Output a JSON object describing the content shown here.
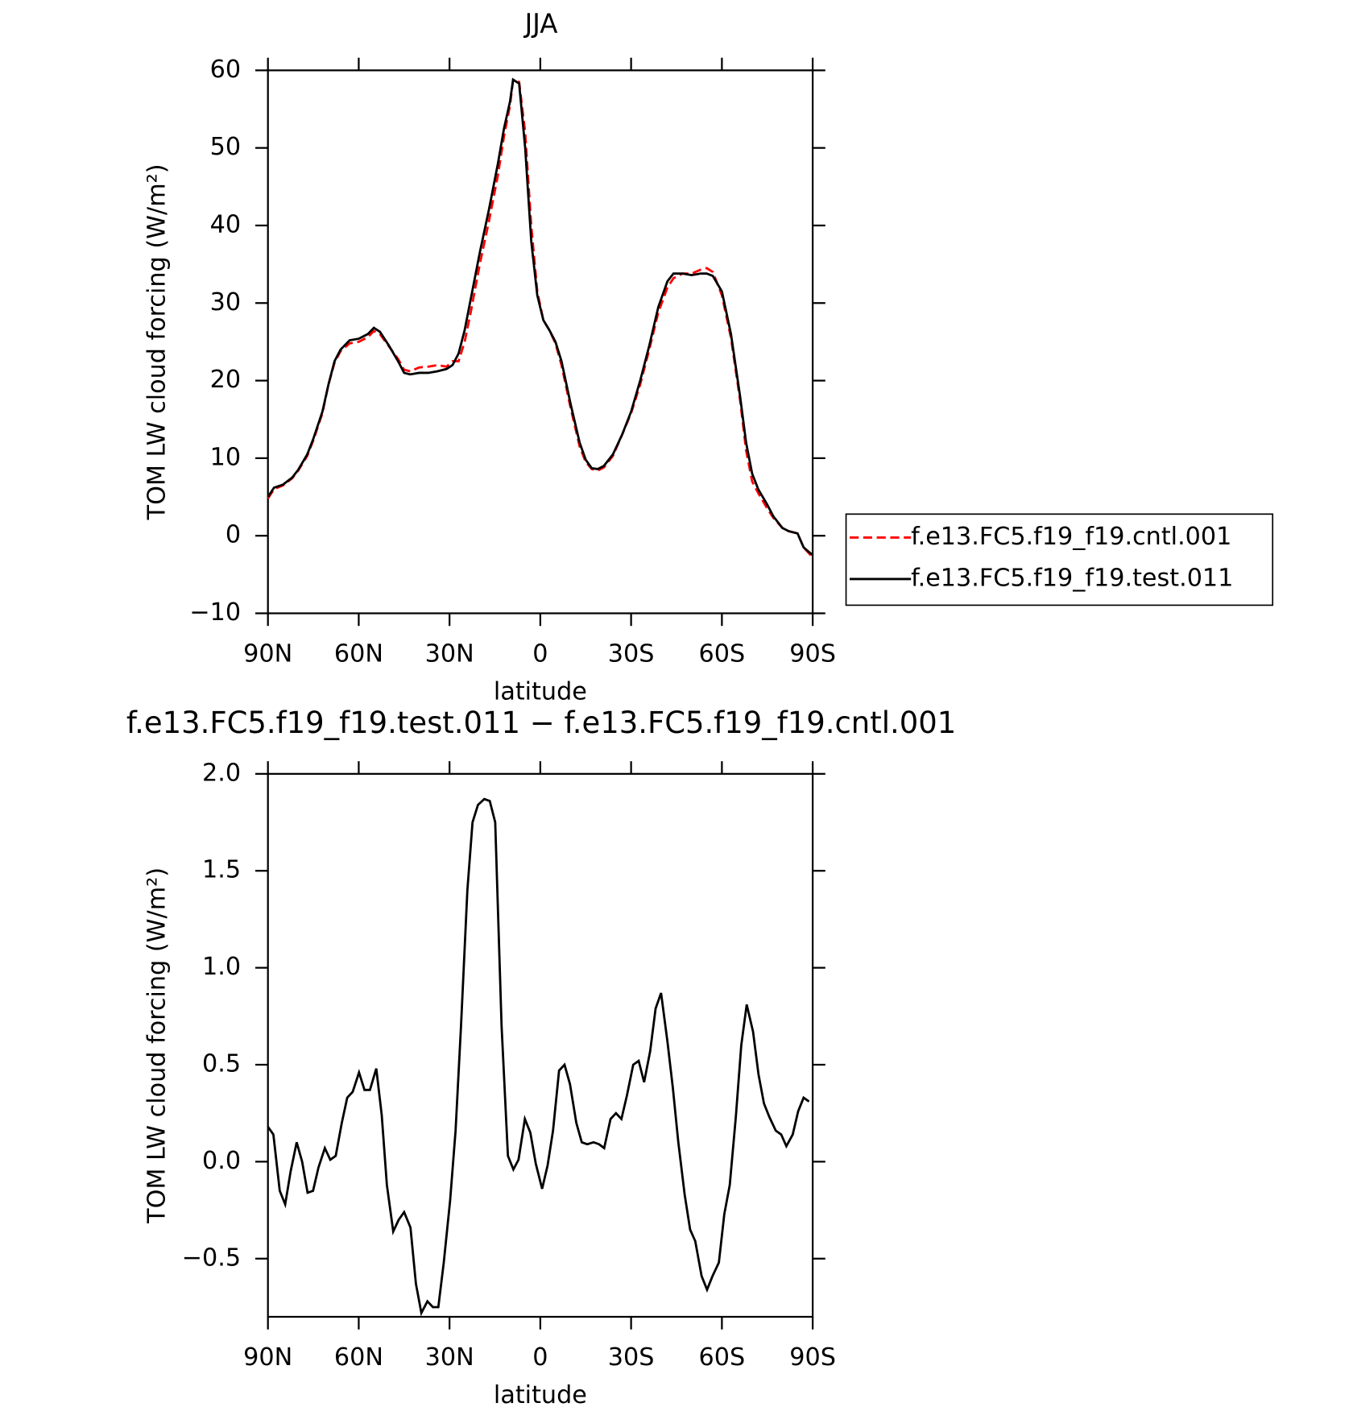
{
  "chart_data": [
    {
      "type": "line",
      "title": "JJA",
      "xlabel": "latitude",
      "ylabel": "TOM LW cloud forcing (W/m²)",
      "x": [
        90,
        88,
        85,
        82,
        80,
        77,
        75,
        72,
        70,
        68,
        66,
        63,
        60,
        57,
        55,
        53,
        50,
        47,
        45,
        43,
        40,
        37,
        34,
        31,
        29,
        27,
        25,
        23,
        20,
        17,
        14,
        12,
        10,
        9,
        7,
        5,
        3,
        1,
        -1,
        -3,
        -5,
        -7,
        -10,
        -13,
        -15,
        -17,
        -19,
        -21,
        -24,
        -27,
        -30,
        -33,
        -36,
        -39,
        -42,
        -44,
        -47,
        -50,
        -53,
        -55,
        -57,
        -60,
        -63,
        -66,
        -68,
        -70,
        -72,
        -75,
        -77,
        -80,
        -82,
        -85,
        -87,
        -90
      ],
      "series": [
        {
          "name": "f.e13.FC5.f19_f19.cntl.001",
          "color": "#ff0000",
          "dash": "dashed",
          "values": [
            4.8,
            6.0,
            6.5,
            7.4,
            8.4,
            10.3,
            12.3,
            15.8,
            19.5,
            22.3,
            23.8,
            24.8,
            25,
            25.6,
            26.4,
            26,
            24.4,
            22.8,
            21.4,
            21.2,
            21.7,
            21.8,
            22,
            21.8,
            22.5,
            22.5,
            25,
            28.8,
            35,
            40.5,
            46.5,
            51.5,
            55.5,
            58.7,
            58.5,
            52,
            40,
            31.5,
            27.8,
            26.5,
            24.8,
            22,
            16.5,
            11.5,
            9.5,
            8.6,
            8.4,
            8.8,
            10.3,
            13,
            15.8,
            19.5,
            24,
            28.8,
            32,
            33.2,
            33.8,
            33.8,
            34.3,
            34.5,
            34,
            31,
            25.5,
            17.5,
            11,
            7,
            5.5,
            3.5,
            2.3,
            1,
            0.6,
            0.3,
            -1.5,
            -2.8
          ]
        },
        {
          "name": "f.e13.FC5.f19_f19.test.011",
          "color": "#000000",
          "dash": "solid",
          "values": [
            5.0,
            6.2,
            6.6,
            7.5,
            8.5,
            10.5,
            12.5,
            16,
            19.5,
            22.5,
            24,
            25.2,
            25.4,
            26,
            26.8,
            26.3,
            24.5,
            22.5,
            21,
            20.8,
            21,
            21,
            21.2,
            21.5,
            22,
            23.5,
            26.5,
            30.5,
            36.5,
            42,
            48,
            52.5,
            56,
            58.8,
            58.3,
            50,
            38,
            31,
            27.8,
            26.5,
            25,
            22.5,
            17,
            12,
            9.8,
            8.7,
            8.6,
            9.0,
            10.5,
            13,
            16,
            20,
            24.5,
            29.5,
            32.8,
            33.8,
            33.8,
            33.6,
            33.8,
            33.8,
            33.5,
            31.5,
            26,
            18,
            12,
            8,
            6,
            4,
            2.5,
            1,
            0.6,
            0.3,
            -1.5,
            -2.5
          ]
        }
      ],
      "xlim": [
        90,
        -90
      ],
      "xticks": [
        {
          "value": 90,
          "label": "90N"
        },
        {
          "value": 60,
          "label": "60N"
        },
        {
          "value": 30,
          "label": "30N"
        },
        0,
        {
          "value": -30,
          "label": "30S"
        },
        {
          "value": -60,
          "label": "60S"
        },
        {
          "value": -90,
          "label": "90S"
        }
      ],
      "ylim": [
        -10,
        60
      ],
      "yticks": [
        {
          "value": -10,
          "label": "−10"
        },
        0,
        10,
        20,
        30,
        40,
        50,
        60
      ],
      "legend": "right"
    },
    {
      "type": "line",
      "title": "f.e13.FC5.f19_f19.test.011 − f.e13.FC5.f19_f19.cntl.001",
      "xlabel": "latitude",
      "ylabel": "TOM LW cloud forcing (W/m²)",
      "x": [
        90,
        88.2,
        86.1,
        84.3,
        82.5,
        80.5,
        78.7,
        76.9,
        75.1,
        73.3,
        71.2,
        69.4,
        67.6,
        65.6,
        63.8,
        62.0,
        59.9,
        58.1,
        56.3,
        54.2,
        52.4,
        50.7,
        48.6,
        46.8,
        45.0,
        42.9,
        41.1,
        39.3,
        37.3,
        35.5,
        33.7,
        31.9,
        29.8,
        28.0,
        26.2,
        24.1,
        22.4,
        20.6,
        18.5,
        16.7,
        14.9,
        12.8,
        10.7,
        8.9,
        7.2,
        5.1,
        3.3,
        1.5,
        -0.6,
        -2.4,
        -4.2,
        -6.2,
        -8.0,
        -9.8,
        -11.9,
        -13.7,
        -15.5,
        -17.6,
        -19.4,
        -21.1,
        -23.2,
        -25.0,
        -26.8,
        -28.6,
        -30.7,
        -32.5,
        -34.3,
        -36.3,
        -38.1,
        -39.9,
        -42.0,
        -43.8,
        -45.6,
        -47.7,
        -49.5,
        -51.2,
        -53.3,
        -55.1,
        -56.9,
        -59.0,
        -60.8,
        -62.6,
        -64.6,
        -66.4,
        -68.2,
        -70.3,
        -72.1,
        -73.9,
        -75.7,
        -77.8,
        -79.6,
        -81.3,
        -83.4,
        -85.2,
        -87.0,
        -88.8
      ],
      "series": [
        {
          "color": "#000000",
          "dash": "solid",
          "values": [
            0.18,
            0.14,
            -0.15,
            -0.22,
            -0.05,
            0.1,
            0.0,
            -0.16,
            -0.15,
            -0.03,
            0.07,
            0.01,
            0.03,
            0.2,
            0.33,
            0.36,
            0.46,
            0.37,
            0.37,
            0.48,
            0.24,
            -0.12,
            -0.36,
            -0.3,
            -0.26,
            -0.34,
            -0.63,
            -0.78,
            -0.72,
            -0.75,
            -0.75,
            -0.52,
            -0.2,
            0.16,
            0.7,
            1.4,
            1.75,
            1.84,
            1.87,
            1.86,
            1.75,
            0.7,
            0.03,
            -0.04,
            0.01,
            0.22,
            0.15,
            -0.01,
            -0.14,
            -0.02,
            0.16,
            0.47,
            0.5,
            0.4,
            0.2,
            0.1,
            0.09,
            0.1,
            0.09,
            0.07,
            0.22,
            0.25,
            0.22,
            0.34,
            0.5,
            0.52,
            0.41,
            0.57,
            0.79,
            0.87,
            0.62,
            0.38,
            0.1,
            -0.17,
            -0.35,
            -0.41,
            -0.59,
            -0.66,
            -0.59,
            -0.52,
            -0.27,
            -0.12,
            0.23,
            0.6,
            0.81,
            0.67,
            0.45,
            0.3,
            0.23,
            0.16,
            0.14,
            0.08,
            0.14,
            0.26,
            0.33,
            0.31
          ]
        }
      ],
      "xlim": [
        90,
        -90
      ],
      "xticks": [
        {
          "value": 90,
          "label": "90N"
        },
        {
          "value": 60,
          "label": "60N"
        },
        {
          "value": 30,
          "label": "30N"
        },
        0,
        {
          "value": -30,
          "label": "30S"
        },
        {
          "value": -60,
          "label": "60S"
        },
        {
          "value": -90,
          "label": "90S"
        }
      ],
      "ylim": [
        -0.8,
        2.0
      ],
      "yticks": [
        {
          "value": -0.5,
          "label": "−0.5"
        },
        {
          "value": 0,
          "label": "0.0"
        },
        0.5,
        {
          "value": 1,
          "label": "1.0"
        },
        1.5,
        {
          "value": 2,
          "label": "2.0"
        }
      ]
    }
  ]
}
